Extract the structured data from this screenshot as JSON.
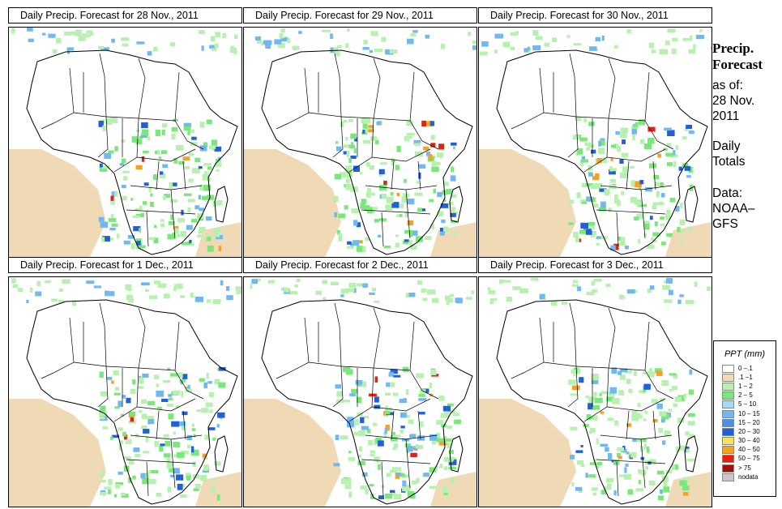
{
  "panels": [
    {
      "title": "Daily Precip. Forecast for  28 Nov., 2011"
    },
    {
      "title": "Daily Precip. Forecast for  29 Nov., 2011"
    },
    {
      "title": "Daily Precip. Forecast for  30 Nov., 2011"
    },
    {
      "title": "Daily Precip. Forecast for  1 Dec., 2011"
    },
    {
      "title": "Daily Precip. Forecast for  2 Dec., 2011"
    },
    {
      "title": "Daily Precip. Forecast for  3 Dec., 2011"
    }
  ],
  "sidebar": {
    "heading1": "Precip.",
    "heading2": "Forecast",
    "asof1": "as of:",
    "asof2": "28 Nov.",
    "asof3": "2011",
    "daily1": "Daily",
    "daily2": "Totals",
    "data1": "Data:",
    "data2": "NOAA–",
    "data3": "GFS"
  },
  "legend": {
    "title": "PPT (mm)",
    "items": [
      {
        "label": "0 –.1",
        "color": "#ffffff"
      },
      {
        "label": ".1 –1",
        "color": "#f0d9b5"
      },
      {
        "label": "1 – 2",
        "color": "#b8f0b0"
      },
      {
        "label": "2 – 5",
        "color": "#78e878"
      },
      {
        "label": "5 – 10",
        "color": "#a8d8f8"
      },
      {
        "label": "10 – 15",
        "color": "#70b8f0"
      },
      {
        "label": "15 – 20",
        "color": "#4a90e8"
      },
      {
        "label": "20 – 30",
        "color": "#2060d8"
      },
      {
        "label": "30 – 40",
        "color": "#f8e060"
      },
      {
        "label": "40 – 50",
        "color": "#f8a020"
      },
      {
        "label": "50 – 75",
        "color": "#e82010"
      },
      {
        "label": "> 75",
        "color": "#a01010"
      },
      {
        "label": "nodata",
        "color": "#c8c8c8"
      }
    ]
  }
}
